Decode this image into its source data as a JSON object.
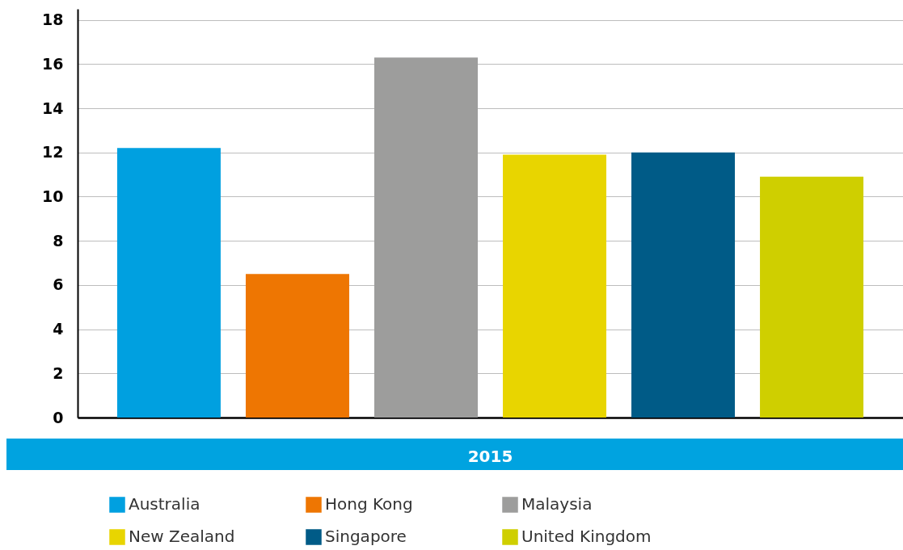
{
  "chart_data": {
    "type": "bar",
    "categories": [
      "2015"
    ],
    "series": [
      {
        "name": "Australia",
        "color": "#00a0e0",
        "values": [
          12.2
        ]
      },
      {
        "name": "Hong Kong",
        "color": "#ee7602",
        "values": [
          6.5
        ]
      },
      {
        "name": "Malaysia",
        "color": "#9d9d9c",
        "values": [
          16.3
        ]
      },
      {
        "name": "New Zealand",
        "color": "#e8d500",
        "values": [
          11.9
        ]
      },
      {
        "name": "Singapore",
        "color": "#005b87",
        "values": [
          12.0
        ]
      },
      {
        "name": "United Kingdom",
        "color": "#cfcf00",
        "values": [
          10.9
        ]
      }
    ],
    "ylim": [
      0,
      18.5
    ],
    "yticks": [
      0,
      2,
      4,
      6,
      8,
      10,
      12,
      14,
      16,
      18
    ],
    "grid": "y",
    "legend": "bottom"
  }
}
